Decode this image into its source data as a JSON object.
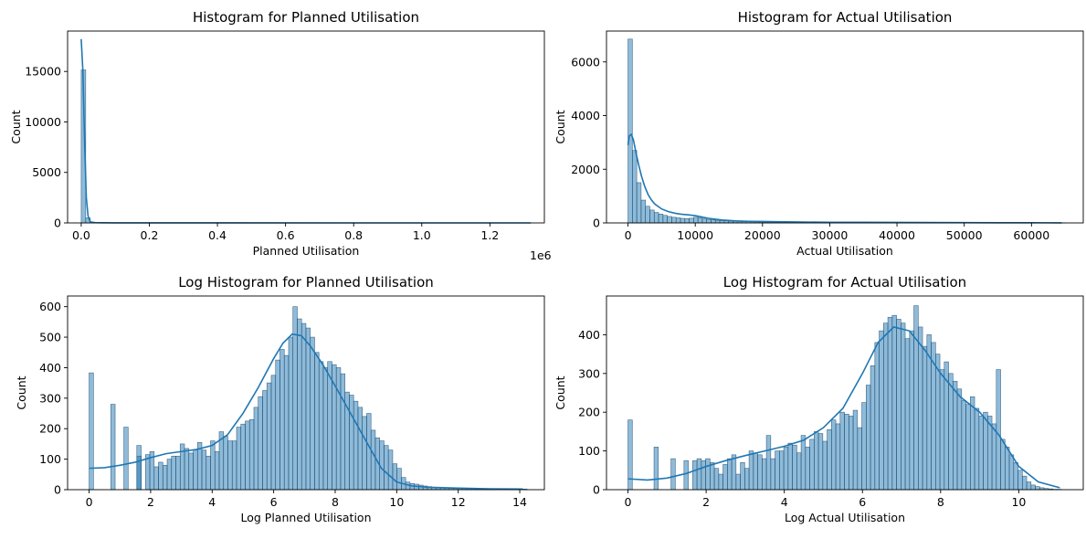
{
  "figure": {
    "background": "#ffffff",
    "bar_fill": "#1f77b4",
    "bar_alpha": 0.5,
    "kde_color": "#1f77b4",
    "axis_color": "#000000"
  },
  "chart_data": [
    {
      "type": "bar",
      "subtype": "histogram_with_kde",
      "title": "Histogram for Planned Utilisation",
      "xlabel": "Planned Utilisation",
      "ylabel": "Count",
      "x_offset_label": "1e6",
      "xlim": [
        -40000,
        1360000
      ],
      "ylim": [
        0,
        19000
      ],
      "xticks": [
        0,
        200000,
        400000,
        600000,
        800000,
        1000000,
        1200000
      ],
      "xtick_labels": [
        "0.0",
        "0.2",
        "0.4",
        "0.6",
        "0.8",
        "1.0",
        "1.2"
      ],
      "yticks": [
        0,
        5000,
        10000,
        15000
      ],
      "ytick_labels": [
        "0",
        "5000",
        "10000",
        "15000"
      ],
      "bins": {
        "start": 0,
        "width": 13200,
        "counts": [
          15150,
          500,
          80,
          30,
          15,
          10,
          8,
          6,
          5,
          4,
          3,
          3,
          2,
          2,
          2,
          2,
          1,
          1,
          1,
          1,
          1,
          1,
          1,
          1,
          1,
          1,
          1,
          1,
          1,
          1
        ]
      },
      "kde": {
        "x": [
          0,
          5000,
          10000,
          15000,
          20000,
          25000,
          30000,
          40000,
          60000,
          100000,
          200000,
          400000,
          800000,
          1320000
        ],
        "y": [
          18200,
          15000,
          8000,
          2500,
          700,
          200,
          80,
          30,
          15,
          8,
          4,
          2,
          1,
          0
        ]
      }
    },
    {
      "type": "bar",
      "subtype": "histogram_with_kde",
      "title": "Histogram for Actual Utilisation",
      "xlabel": "Actual Utilisation",
      "ylabel": "Count",
      "xlim": [
        -3200,
        67700
      ],
      "ylim": [
        0,
        7150
      ],
      "xticks": [
        0,
        10000,
        20000,
        30000,
        40000,
        50000,
        60000
      ],
      "xtick_labels": [
        "0",
        "10000",
        "20000",
        "30000",
        "40000",
        "50000",
        "60000"
      ],
      "yticks": [
        0,
        2000,
        4000,
        6000
      ],
      "ytick_labels": [
        "0",
        "2000",
        "4000",
        "6000"
      ],
      "bins": {
        "start": 0,
        "width": 650,
        "counts": [
          6850,
          2700,
          1500,
          850,
          620,
          480,
          390,
          330,
          280,
          240,
          210,
          190,
          170,
          160,
          175,
          210,
          190,
          150,
          130,
          110,
          95,
          85,
          75,
          65,
          60,
          55,
          50,
          45,
          40,
          38,
          35,
          32,
          30,
          35,
          40,
          38,
          30,
          25,
          22,
          20,
          18,
          16,
          15,
          14,
          13,
          12,
          11,
          10,
          10,
          9,
          9,
          8,
          8,
          7,
          7,
          6,
          6,
          6,
          5,
          5,
          5,
          5,
          4,
          4,
          4,
          4,
          3,
          3,
          3,
          3,
          3,
          3,
          3,
          2,
          2,
          2,
          2,
          2,
          2,
          2,
          2,
          2,
          2,
          2,
          2,
          2,
          2,
          2,
          2,
          2,
          2,
          2,
          2,
          2,
          2,
          2,
          2,
          2,
          2,
          2
        ]
      },
      "kde": {
        "x": [
          0,
          200,
          500,
          800,
          1200,
          1600,
          2000,
          2500,
          3000,
          3500,
          4000,
          5000,
          6000,
          7000,
          8000,
          9000,
          10000,
          11000,
          12000,
          14000,
          16000,
          18000,
          20000,
          22000,
          25000,
          30000,
          35000,
          40000,
          45000,
          50000,
          55000,
          60000,
          64500
        ],
        "y": [
          2900,
          3250,
          3300,
          3100,
          2600,
          2150,
          1750,
          1350,
          1050,
          850,
          700,
          520,
          420,
          360,
          320,
          300,
          270,
          220,
          170,
          110,
          75,
          60,
          55,
          45,
          35,
          25,
          22,
          20,
          15,
          10,
          8,
          5,
          3
        ]
      }
    },
    {
      "type": "bar",
      "subtype": "histogram_with_kde",
      "title": "Log Histogram for Planned Utilisation",
      "xlabel": "Log Planned Utilisation",
      "ylabel": "Count",
      "xlim": [
        -0.7,
        14.8
      ],
      "ylim": [
        0,
        635
      ],
      "xticks": [
        0,
        2,
        4,
        6,
        8,
        10,
        12,
        14
      ],
      "xtick_labels": [
        "0",
        "2",
        "4",
        "6",
        "8",
        "10",
        "12",
        "14"
      ],
      "yticks": [
        0,
        100,
        200,
        300,
        400,
        500,
        600
      ],
      "ytick_labels": [
        "0",
        "100",
        "200",
        "300",
        "400",
        "500",
        "600"
      ],
      "bins": {
        "start": 0,
        "width": 0.141,
        "counts": [
          383,
          0,
          0,
          0,
          0,
          280,
          0,
          0,
          205,
          0,
          0,
          110,
          0,
          0,
          0,
          0,
          0,
          0,
          0,
          0,
          0,
          0,
          0,
          0,
          0,
          0,
          0,
          0,
          0,
          0,
          0,
          0,
          0,
          0,
          0,
          0,
          0,
          0,
          0,
          0,
          0,
          0,
          0,
          0,
          0,
          0,
          0,
          0,
          0,
          0,
          0,
          0,
          0,
          0,
          0,
          0,
          0,
          0,
          0,
          0,
          0,
          0,
          0,
          0,
          0,
          0,
          0,
          0,
          0,
          0,
          0,
          0,
          0,
          0,
          0,
          0,
          0,
          0,
          0,
          0,
          0,
          0,
          0,
          0,
          0,
          0,
          0,
          0,
          0,
          0,
          0,
          0,
          0,
          0,
          0,
          0,
          0,
          0,
          0,
          0
        ]
      },
      "bins_main": {
        "start": 1.55,
        "width": 0.141,
        "counts": [
          145,
          0,
          115,
          125,
          75,
          90,
          80,
          100,
          110,
          110,
          150,
          135,
          120,
          130,
          155,
          130,
          110,
          160,
          125,
          190,
          175,
          160,
          160,
          205,
          215,
          225,
          230,
          270,
          305,
          325,
          350,
          375,
          425,
          460,
          440,
          500,
          600,
          560,
          545,
          530,
          500,
          450,
          420,
          400,
          420,
          410,
          400,
          380,
          320,
          310,
          290,
          270,
          240,
          250,
          195,
          170,
          160,
          145,
          130,
          85,
          70,
          40,
          25,
          20,
          18,
          15,
          12,
          10,
          8,
          7,
          6,
          6,
          5,
          5,
          5,
          4,
          4,
          4,
          3,
          3,
          3,
          3,
          3,
          2,
          2,
          2,
          2,
          2,
          2,
          2
        ]
      },
      "kde": {
        "x": [
          0,
          0.5,
          1,
          1.5,
          2,
          2.5,
          3,
          3.5,
          4,
          4.5,
          5,
          5.5,
          6,
          6.3,
          6.6,
          6.9,
          7.2,
          7.6,
          8,
          8.5,
          9,
          9.5,
          10,
          10.5,
          11,
          12,
          13,
          14.1
        ],
        "y": [
          70,
          72,
          80,
          90,
          105,
          118,
          125,
          132,
          145,
          180,
          250,
          335,
          430,
          480,
          510,
          505,
          470,
          410,
          340,
          250,
          160,
          70,
          25,
          12,
          8,
          5,
          3,
          2
        ]
      }
    },
    {
      "type": "bar",
      "subtype": "histogram_with_kde",
      "title": "Log Histogram for Actual Utilisation",
      "xlabel": "Log Actual Utilisation",
      "ylabel": "Count",
      "xlim": [
        -0.55,
        11.65
      ],
      "ylim": [
        0,
        500
      ],
      "xticks": [
        0,
        2,
        4,
        6,
        8,
        10
      ],
      "xtick_labels": [
        "0",
        "2",
        "4",
        "6",
        "8",
        "10"
      ],
      "yticks": [
        0,
        100,
        200,
        300,
        400
      ],
      "ytick_labels": [
        "0",
        "100",
        "200",
        "300",
        "400"
      ],
      "bins": {
        "start": 0,
        "width": 0.111,
        "counts": [
          180,
          0,
          0,
          0,
          0,
          0,
          110,
          0,
          0,
          0,
          0,
          0,
          0,
          0,
          0,
          0,
          0,
          0,
          0,
          0,
          0,
          0,
          0,
          0,
          0,
          0,
          0,
          0,
          0,
          0,
          0,
          0,
          0,
          0,
          0,
          0,
          0,
          0,
          0,
          0,
          0,
          0,
          0,
          0,
          0,
          0,
          0,
          0,
          0,
          0,
          0,
          0,
          0,
          0,
          0,
          0,
          0,
          0,
          0,
          0,
          0,
          0,
          0,
          0,
          0,
          0,
          0,
          0,
          0,
          0,
          0,
          0,
          0,
          0,
          0,
          0,
          0,
          0,
          0,
          0,
          0,
          0,
          0,
          0,
          0,
          0,
          0,
          0,
          0,
          0,
          0,
          0,
          0,
          0,
          0,
          0,
          0,
          0,
          0,
          0
        ]
      },
      "bins_main": {
        "start": 1.1,
        "width": 0.111,
        "counts": [
          80,
          0,
          0,
          75,
          0,
          75,
          80,
          75,
          80,
          70,
          55,
          40,
          65,
          80,
          90,
          40,
          70,
          55,
          100,
          95,
          90,
          80,
          140,
          80,
          100,
          100,
          110,
          120,
          115,
          95,
          140,
          110,
          130,
          150,
          145,
          125,
          155,
          180,
          170,
          200,
          195,
          190,
          205,
          160,
          225,
          270,
          320,
          380,
          410,
          430,
          445,
          450,
          440,
          430,
          390,
          410,
          475,
          420,
          370,
          400,
          380,
          350,
          310,
          330,
          300,
          280,
          260,
          230,
          220,
          240,
          210,
          190,
          200,
          190,
          170,
          310,
          130,
          110,
          90,
          70,
          50,
          35,
          20,
          12,
          8,
          5,
          3,
          2,
          1,
          1
        ]
      },
      "kde": {
        "x": [
          0,
          0.5,
          1,
          1.5,
          2,
          2.5,
          3,
          3.5,
          4,
          4.5,
          5,
          5.5,
          6,
          6.4,
          6.8,
          7.2,
          7.6,
          8,
          8.5,
          9,
          9.5,
          10,
          10.5,
          11.05
        ],
        "y": [
          28,
          25,
          30,
          42,
          60,
          75,
          88,
          100,
          112,
          128,
          160,
          210,
          300,
          380,
          420,
          410,
          360,
          300,
          240,
          200,
          140,
          60,
          20,
          5
        ]
      }
    }
  ]
}
